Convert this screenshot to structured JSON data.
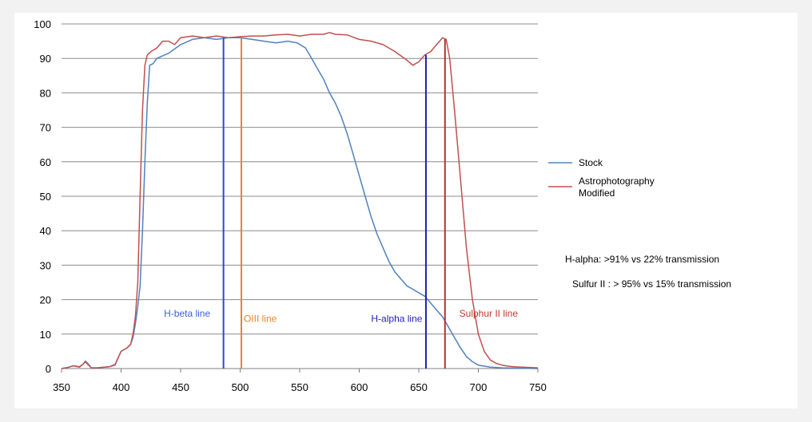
{
  "chart_data": {
    "type": "line",
    "xlim": [
      350,
      750
    ],
    "ylim": [
      0,
      100
    ],
    "x_ticks": [
      "350",
      "400",
      "450",
      "500",
      "550",
      "600",
      "650",
      "700",
      "750"
    ],
    "y_ticks": [
      "0",
      "10",
      "20",
      "30",
      "40",
      "50",
      "60",
      "70",
      "80",
      "90",
      "100"
    ],
    "grid": "horizontal",
    "legend_position": "right",
    "series": [
      {
        "name": "Stock",
        "color": "#4f81bd",
        "points": [
          [
            350,
            0
          ],
          [
            355,
            0.3
          ],
          [
            360,
            0.8
          ],
          [
            365,
            0.4
          ],
          [
            368,
            1.2
          ],
          [
            370,
            2.2
          ],
          [
            372,
            1.5
          ],
          [
            375,
            0.2
          ],
          [
            380,
            0.2
          ],
          [
            390,
            0.5
          ],
          [
            395,
            1.2
          ],
          [
            398,
            3.5
          ],
          [
            400,
            5
          ],
          [
            405,
            6
          ],
          [
            408,
            7
          ],
          [
            410,
            9
          ],
          [
            412,
            13
          ],
          [
            414,
            18
          ],
          [
            416,
            24
          ],
          [
            418,
            40
          ],
          [
            420,
            60
          ],
          [
            422,
            77
          ],
          [
            424,
            88
          ],
          [
            427,
            88.5
          ],
          [
            430,
            90
          ],
          [
            440,
            91.5
          ],
          [
            450,
            94
          ],
          [
            460,
            95.5
          ],
          [
            470,
            96
          ],
          [
            480,
            95.5
          ],
          [
            490,
            96
          ],
          [
            500,
            96
          ],
          [
            510,
            95.5
          ],
          [
            520,
            95
          ],
          [
            530,
            94.5
          ],
          [
            540,
            95
          ],
          [
            548,
            94.5
          ],
          [
            555,
            93
          ],
          [
            560,
            90
          ],
          [
            565,
            87
          ],
          [
            570,
            84
          ],
          [
            575,
            80
          ],
          [
            580,
            77
          ],
          [
            585,
            73
          ],
          [
            590,
            68
          ],
          [
            595,
            62
          ],
          [
            600,
            56
          ],
          [
            605,
            50
          ],
          [
            610,
            44
          ],
          [
            615,
            39
          ],
          [
            620,
            35
          ],
          [
            625,
            31
          ],
          [
            630,
            28
          ],
          [
            635,
            26
          ],
          [
            640,
            24
          ],
          [
            645,
            23
          ],
          [
            650,
            22
          ],
          [
            655,
            21
          ],
          [
            660,
            19
          ],
          [
            665,
            17
          ],
          [
            670,
            15
          ],
          [
            675,
            12
          ],
          [
            680,
            9
          ],
          [
            685,
            6
          ],
          [
            690,
            3.5
          ],
          [
            695,
            2
          ],
          [
            700,
            1
          ],
          [
            710,
            0.4
          ],
          [
            720,
            0.2
          ],
          [
            750,
            0
          ]
        ]
      },
      {
        "name": "Astrophotography Modified",
        "color": "#c0504d",
        "points": [
          [
            350,
            0
          ],
          [
            355,
            0.3
          ],
          [
            360,
            0.8
          ],
          [
            365,
            0.5
          ],
          [
            368,
            1.2
          ],
          [
            370,
            2
          ],
          [
            372,
            1.2
          ],
          [
            375,
            0.2
          ],
          [
            380,
            0.2
          ],
          [
            390,
            0.5
          ],
          [
            395,
            1
          ],
          [
            398,
            3.5
          ],
          [
            400,
            5
          ],
          [
            405,
            6
          ],
          [
            408,
            7
          ],
          [
            410,
            10
          ],
          [
            412,
            15
          ],
          [
            414,
            25
          ],
          [
            416,
            50
          ],
          [
            418,
            75
          ],
          [
            420,
            88
          ],
          [
            422,
            91
          ],
          [
            425,
            92
          ],
          [
            430,
            93
          ],
          [
            435,
            95
          ],
          [
            440,
            95
          ],
          [
            445,
            94
          ],
          [
            450,
            96
          ],
          [
            460,
            96.5
          ],
          [
            470,
            96
          ],
          [
            480,
            96.5
          ],
          [
            490,
            96
          ],
          [
            500,
            96.3
          ],
          [
            510,
            96.5
          ],
          [
            520,
            96.5
          ],
          [
            530,
            96.8
          ],
          [
            540,
            97
          ],
          [
            550,
            96.5
          ],
          [
            560,
            97
          ],
          [
            570,
            97
          ],
          [
            575,
            97.5
          ],
          [
            580,
            97
          ],
          [
            590,
            96.8
          ],
          [
            600,
            95.5
          ],
          [
            610,
            95
          ],
          [
            620,
            94
          ],
          [
            630,
            92
          ],
          [
            640,
            89.5
          ],
          [
            645,
            88
          ],
          [
            650,
            89
          ],
          [
            655,
            91
          ],
          [
            660,
            92
          ],
          [
            665,
            94
          ],
          [
            670,
            96
          ],
          [
            673,
            95.5
          ],
          [
            676,
            90
          ],
          [
            680,
            75
          ],
          [
            685,
            55
          ],
          [
            690,
            35
          ],
          [
            695,
            20
          ],
          [
            700,
            10
          ],
          [
            705,
            5
          ],
          [
            710,
            2.5
          ],
          [
            715,
            1.5
          ],
          [
            720,
            1
          ],
          [
            725,
            0.7
          ],
          [
            730,
            0.5
          ],
          [
            750,
            0.2
          ]
        ]
      }
    ],
    "vlines": [
      {
        "x": 486,
        "y_top": 96,
        "color": "#2b47cf",
        "label": "H-beta line",
        "label_x": 436,
        "label_y": 15,
        "label_color": "#3a5fd8"
      },
      {
        "x": 501,
        "y_top": 96,
        "color": "#e8852a",
        "label": "OIII line",
        "label_x": 503,
        "label_y": 13.5,
        "label_color": "#e8852a"
      },
      {
        "x": 656,
        "y_top": 91,
        "color": "#1f1fb8",
        "label": "H-alpha line",
        "label_x": 610,
        "label_y": 13.5,
        "label_color": "#1f1fb8"
      },
      {
        "x": 672,
        "y_top": 95.5,
        "color": "#b83030",
        "label": "Sulphur II line",
        "label_x": 684,
        "label_y": 15,
        "label_color": "#c0392b"
      }
    ],
    "annotations": [
      "H-alpha: >91% vs 22% transmission",
      "Sulfur II : > 95% vs 15% transmission"
    ]
  }
}
